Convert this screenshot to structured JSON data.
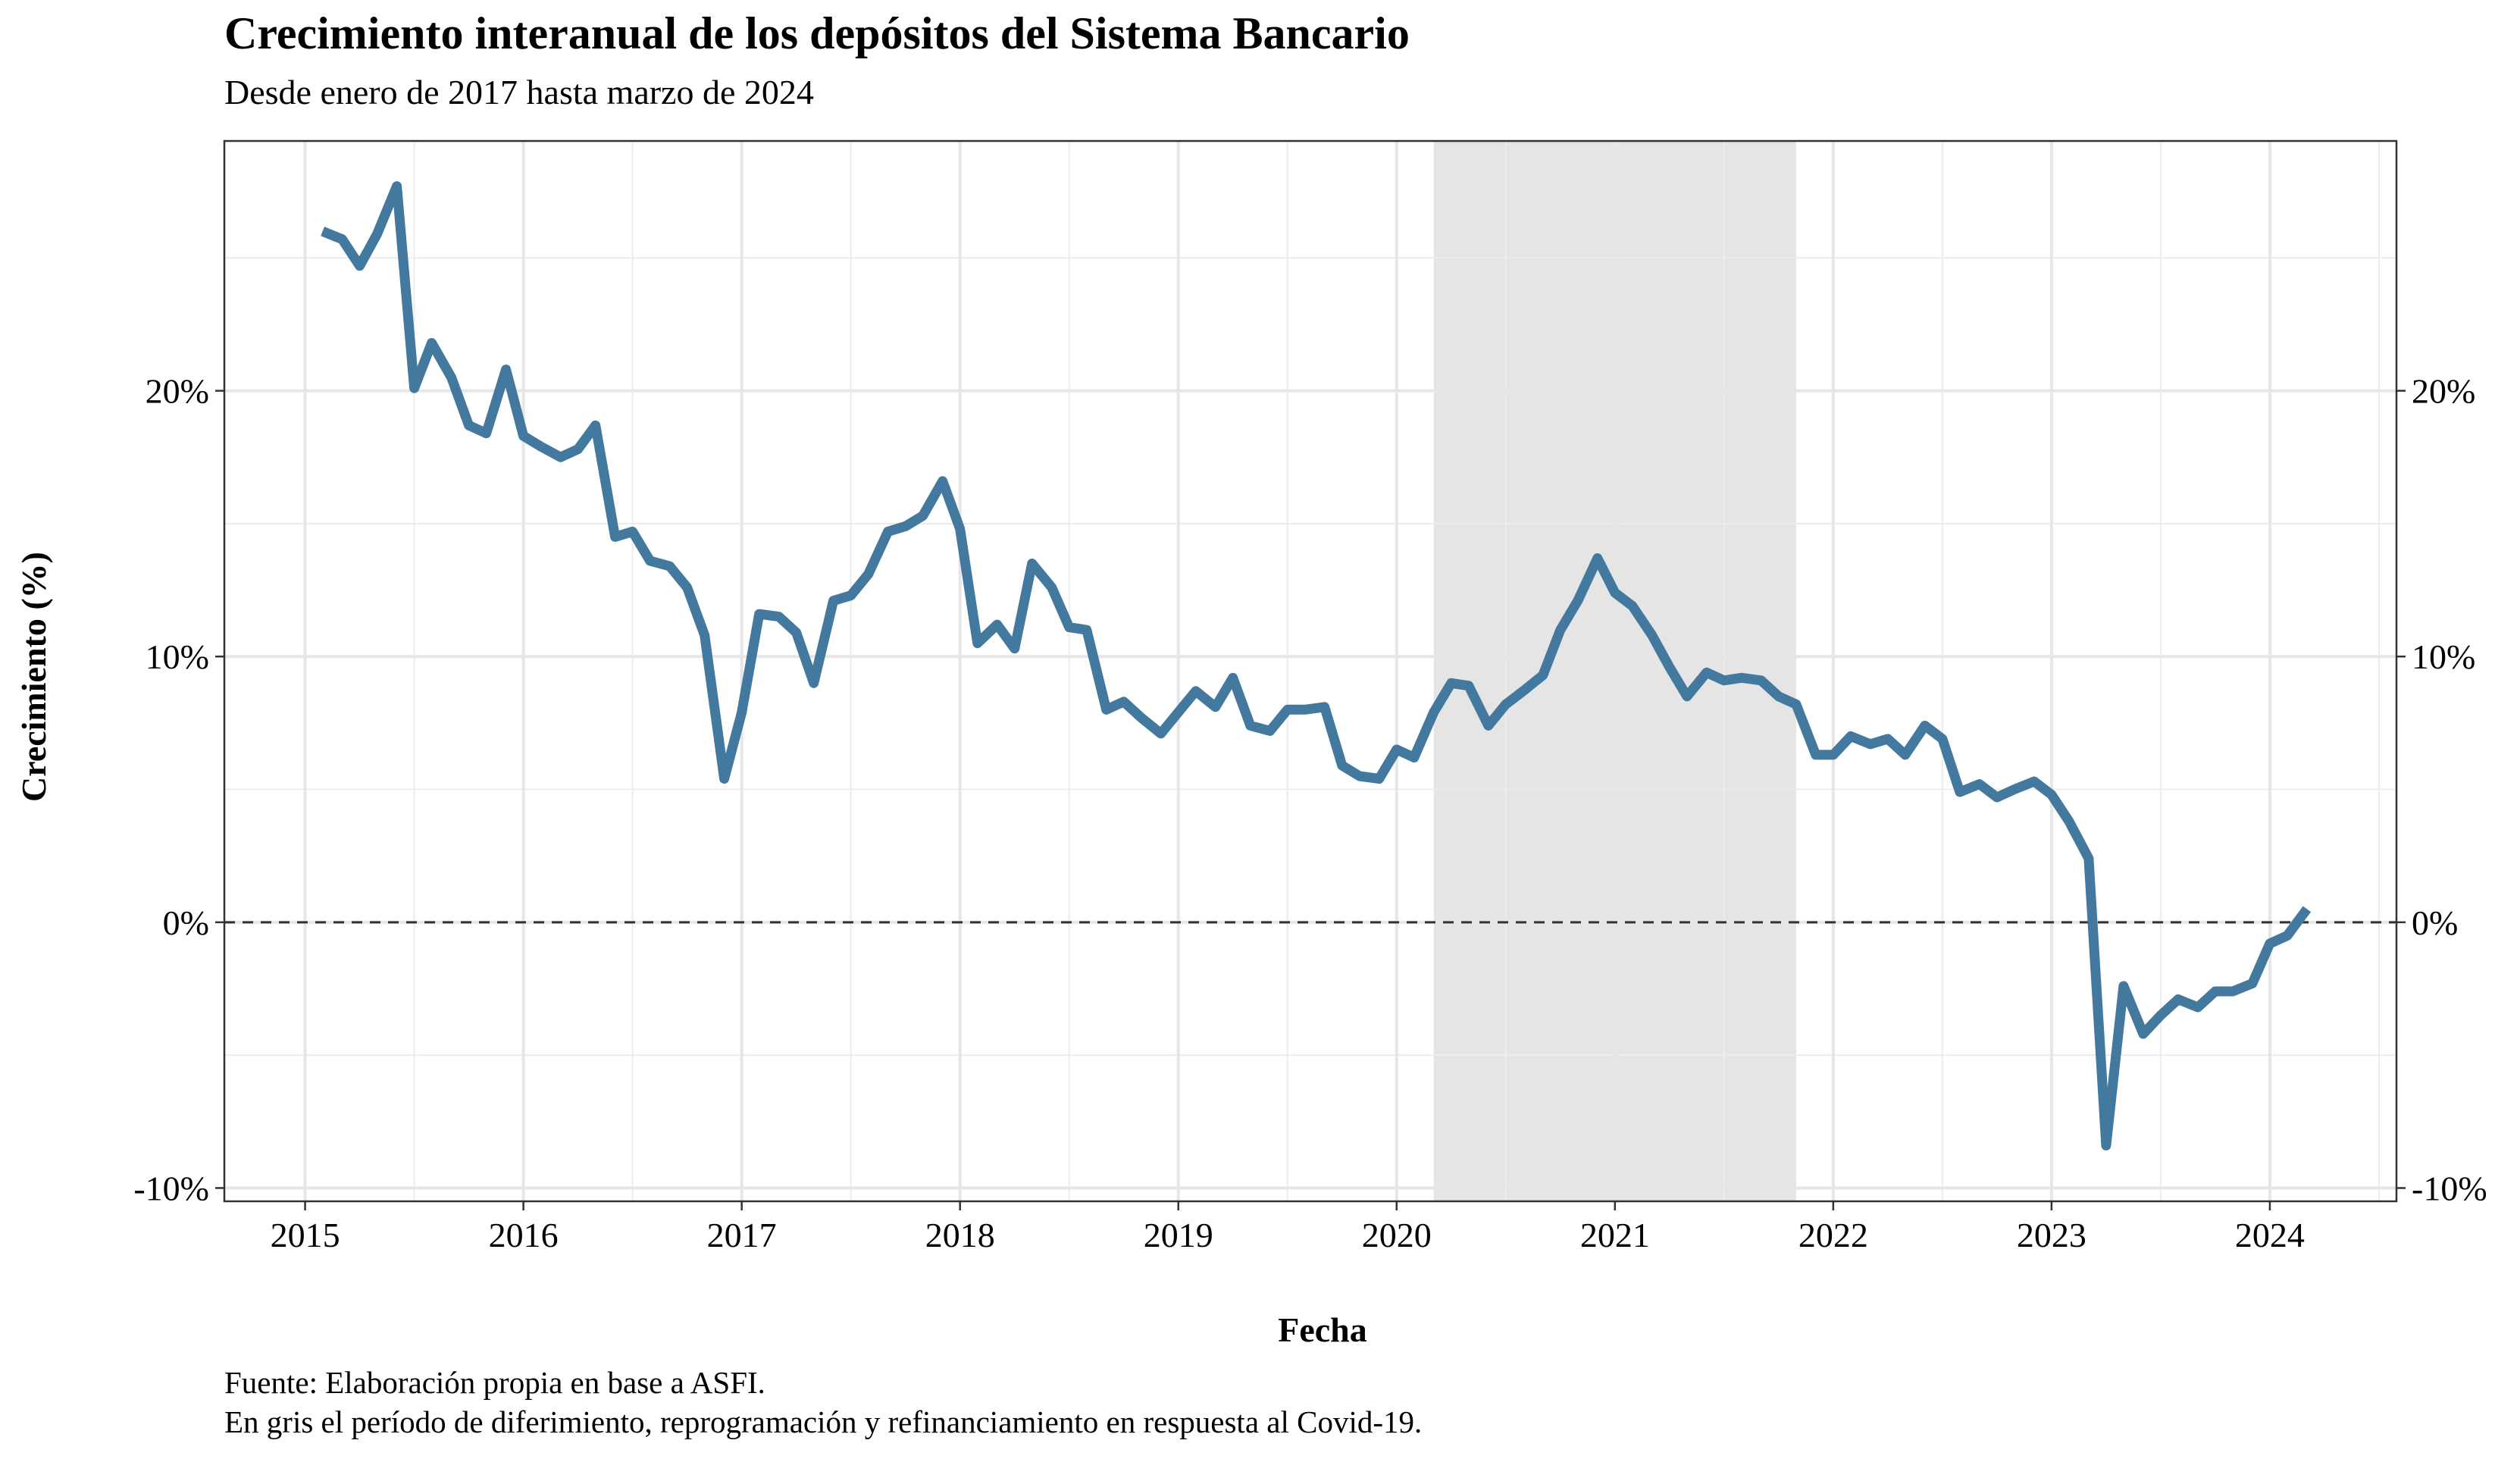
{
  "title": "Crecimiento interanual de los depósitos del Sistema Bancario",
  "subtitle": "Desde enero de 2017 hasta marzo de 2024",
  "caption_lines": [
    "Fuente: Elaboración propia en base a ASFI.",
    "En gris el período de diferimiento, reprogramación y refinanciamiento en respuesta al Covid-19."
  ],
  "chart_data": {
    "type": "line",
    "xlabel": "Fecha",
    "ylabel": "Crecimiento (%)",
    "x_range": [
      2014.63,
      2024.58
    ],
    "ylim": [
      -10.5,
      29.4
    ],
    "y_ticks": [
      -10,
      0,
      10,
      20
    ],
    "y_tick_labels": [
      "-10%",
      "0%",
      "10%",
      "20%"
    ],
    "x_ticks": [
      2015,
      2016,
      2017,
      2018,
      2019,
      2020,
      2021,
      2022,
      2023,
      2024
    ],
    "x_tick_labels": [
      "2015",
      "2016",
      "2017",
      "2018",
      "2019",
      "2020",
      "2021",
      "2022",
      "2023",
      "2024"
    ],
    "shaded_region": {
      "x_start": 2020.17,
      "x_end": 2021.83,
      "color": "#e5e5e5"
    },
    "reference_line": {
      "y": 0,
      "style": "dashed",
      "color": "#333333"
    },
    "line_color": "#43799e",
    "grid": true,
    "series": [
      {
        "x": [
          2015.08,
          2015.17,
          2015.25,
          2015.33,
          2015.42,
          2015.5,
          2015.58,
          2015.67,
          2015.75,
          2015.83,
          2015.92,
          2016.0,
          2016.08,
          2016.17,
          2016.25,
          2016.33,
          2016.42,
          2016.5,
          2016.58,
          2016.67,
          2016.75,
          2016.83,
          2016.92,
          2017.0,
          2017.08,
          2017.17,
          2017.25,
          2017.33,
          2017.42,
          2017.5,
          2017.58,
          2017.67,
          2017.75,
          2017.83,
          2017.92,
          2018.0,
          2018.08,
          2018.17,
          2018.25,
          2018.33,
          2018.42,
          2018.5,
          2018.58,
          2018.67,
          2018.75,
          2018.83,
          2018.92,
          2019.0,
          2019.08,
          2019.17,
          2019.25,
          2019.33,
          2019.42,
          2019.5,
          2019.58,
          2019.67,
          2019.75,
          2019.83,
          2019.92,
          2020.0,
          2020.08,
          2020.17,
          2020.25,
          2020.33,
          2020.42,
          2020.5,
          2020.58,
          2020.67,
          2020.75,
          2020.83,
          2020.92,
          2021.0,
          2021.08,
          2021.17,
          2021.25,
          2021.33,
          2021.42,
          2021.5,
          2021.58,
          2021.67,
          2021.75,
          2021.83,
          2021.92,
          2022.0,
          2022.08,
          2022.17,
          2022.25,
          2022.33,
          2022.42,
          2022.5,
          2022.58,
          2022.67,
          2022.75,
          2022.83,
          2022.92,
          2023.0,
          2023.08,
          2023.17,
          2023.25,
          2023.33,
          2023.42,
          2023.5,
          2023.58,
          2023.67,
          2023.75,
          2023.83,
          2023.92,
          2024.0,
          2024.08,
          2024.17
        ],
        "y": [
          26.0,
          25.7,
          24.7,
          25.9,
          27.7,
          20.1,
          21.8,
          20.5,
          18.7,
          18.4,
          20.8,
          18.3,
          17.9,
          17.5,
          17.8,
          18.7,
          14.5,
          14.7,
          13.6,
          13.4,
          12.6,
          10.8,
          5.4,
          7.9,
          11.6,
          11.5,
          10.9,
          9.0,
          12.1,
          12.3,
          13.1,
          14.7,
          14.9,
          15.3,
          16.6,
          14.8,
          10.5,
          11.2,
          10.3,
          13.5,
          12.6,
          11.1,
          11.0,
          8.0,
          8.3,
          7.7,
          7.1,
          7.9,
          8.7,
          8.1,
          9.2,
          7.4,
          7.2,
          8.0,
          8.0,
          8.1,
          5.9,
          5.5,
          5.4,
          6.5,
          6.2,
          7.9,
          9.0,
          8.9,
          7.4,
          8.2,
          8.7,
          9.3,
          11.0,
          12.1,
          13.7,
          12.4,
          11.9,
          10.8,
          9.6,
          8.5,
          9.4,
          9.1,
          9.2,
          9.1,
          8.5,
          8.2,
          6.3,
          6.3,
          7.0,
          6.7,
          6.9,
          6.3,
          7.4,
          6.9,
          4.9,
          5.2,
          4.7,
          5.0,
          5.3,
          4.8,
          3.8,
          2.4,
          -8.4,
          -2.4,
          -4.2,
          -3.5,
          -2.9,
          -3.2,
          -2.6,
          -2.6,
          -2.3,
          -0.8,
          -0.5,
          0.5
        ]
      }
    ]
  }
}
